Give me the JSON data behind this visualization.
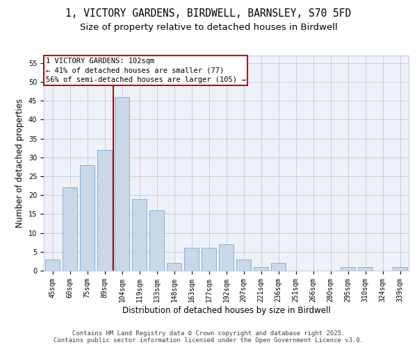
{
  "title_line1": "1, VICTORY GARDENS, BIRDWELL, BARNSLEY, S70 5FD",
  "title_line2": "Size of property relative to detached houses in Birdwell",
  "xlabel": "Distribution of detached houses by size in Birdwell",
  "ylabel": "Number of detached properties",
  "categories": [
    "45sqm",
    "60sqm",
    "75sqm",
    "89sqm",
    "104sqm",
    "119sqm",
    "133sqm",
    "148sqm",
    "163sqm",
    "177sqm",
    "192sqm",
    "207sqm",
    "221sqm",
    "236sqm",
    "251sqm",
    "266sqm",
    "280sqm",
    "295sqm",
    "310sqm",
    "324sqm",
    "339sqm"
  ],
  "values": [
    3,
    22,
    28,
    32,
    46,
    19,
    16,
    2,
    6,
    6,
    7,
    3,
    1,
    2,
    0,
    0,
    0,
    1,
    1,
    0,
    1
  ],
  "bar_color": "#c8d8e8",
  "bar_edge_color": "#7aaac8",
  "grid_color": "#c0c8d8",
  "background_color": "#eef2f8",
  "vline_x": 3.5,
  "vline_color": "#cc0000",
  "annotation_text": "1 VICTORY GARDENS: 102sqm\n← 41% of detached houses are smaller (77)\n56% of semi-detached houses are larger (105) →",
  "annotation_box_color": "#ffffff",
  "annotation_box_edge_color": "#cc0000",
  "ylim": [
    0,
    57
  ],
  "yticks": [
    0,
    5,
    10,
    15,
    20,
    25,
    30,
    35,
    40,
    45,
    50,
    55
  ],
  "footer": "Contains HM Land Registry data © Crown copyright and database right 2025.\nContains public sector information licensed under the Open Government Licence v3.0.",
  "title_fontsize": 10.5,
  "subtitle_fontsize": 9.5,
  "axis_label_fontsize": 8.5,
  "tick_fontsize": 7,
  "footer_fontsize": 6.5,
  "annotation_fontsize": 7.5
}
